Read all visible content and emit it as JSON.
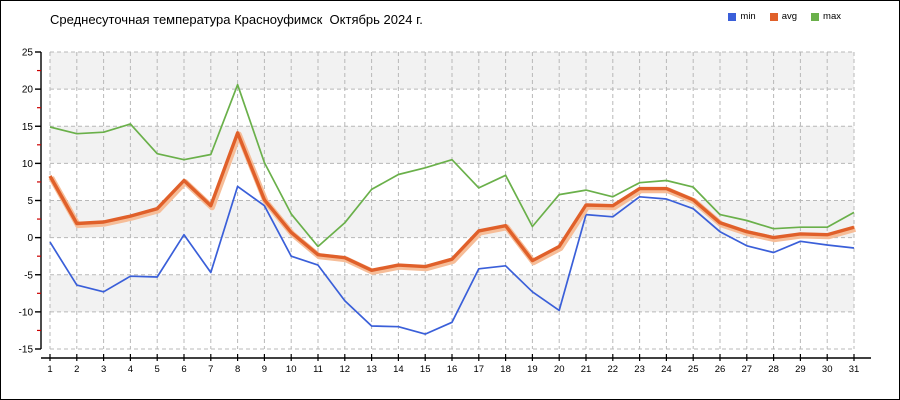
{
  "title": "Среднесуточная температура Красноуфимск  Октябрь 2024 г.",
  "legend": {
    "items": [
      {
        "label": "min",
        "color": "#3a5fd9"
      },
      {
        "label": "avg",
        "color": "#e0602a"
      },
      {
        "label": "max",
        "color": "#6ab04a"
      }
    ]
  },
  "chart_data": {
    "type": "line",
    "title": "Среднесуточная температура Красноуфимск  Октябрь 2024 г.",
    "xlabel": "",
    "ylabel": "",
    "x": [
      1,
      2,
      3,
      4,
      5,
      6,
      7,
      8,
      9,
      10,
      11,
      12,
      13,
      14,
      15,
      16,
      17,
      18,
      19,
      20,
      21,
      22,
      23,
      24,
      25,
      26,
      27,
      28,
      29,
      30,
      31
    ],
    "x_tick_labels": [
      "1",
      "2",
      "3",
      "4",
      "5",
      "6",
      "7",
      "8",
      "9",
      "10",
      "11",
      "12",
      "13",
      "14",
      "15",
      "16",
      "17",
      "18",
      "19",
      "20",
      "21",
      "22",
      "23",
      "24",
      "25",
      "26",
      "27",
      "28",
      "29",
      "30",
      "31"
    ],
    "ylim": [
      -15,
      25
    ],
    "y_ticks": [
      25,
      20,
      15,
      10,
      5,
      0,
      -5,
      -10,
      -15
    ],
    "y_minor_step": 2.5,
    "grid": "dashed",
    "background_bands": "alternating-5",
    "legend_position": "top-right",
    "series": [
      {
        "name": "min",
        "color": "#3a5fd9",
        "width": 1.7,
        "values": [
          -0.6,
          -6.4,
          -7.3,
          -5.2,
          -5.3,
          0.4,
          -4.7,
          6.9,
          4.3,
          -2.5,
          -3.7,
          -8.5,
          -11.9,
          -12.0,
          -13.0,
          -11.4,
          -4.2,
          -3.8,
          -7.3,
          -9.8,
          3.1,
          2.8,
          5.5,
          5.2,
          3.9,
          0.8,
          -1.1,
          -2.0,
          -0.5,
          -1.0,
          -1.4
        ]
      },
      {
        "name": "avg",
        "color": "#e0602a",
        "halo_color": "#f6bd98",
        "width": 3.4,
        "values": [
          8.3,
          1.9,
          2.1,
          2.9,
          3.9,
          7.7,
          4.3,
          14.1,
          5.1,
          0.7,
          -2.3,
          -2.7,
          -4.4,
          -3.7,
          -3.9,
          -2.9,
          0.9,
          1.6,
          -3.1,
          -1.2,
          4.4,
          4.3,
          6.6,
          6.6,
          5.1,
          2.0,
          0.8,
          0.0,
          0.5,
          0.4,
          1.4
        ]
      },
      {
        "name": "max",
        "color": "#6ab04a",
        "width": 1.7,
        "values": [
          14.9,
          14.0,
          14.2,
          15.3,
          11.3,
          10.5,
          11.2,
          20.6,
          10.1,
          3.2,
          -1.2,
          2.0,
          6.5,
          8.5,
          9.4,
          10.5,
          6.7,
          8.4,
          1.5,
          5.8,
          6.4,
          5.5,
          7.4,
          7.7,
          6.8,
          3.1,
          2.3,
          1.2,
          1.4,
          1.4,
          3.4
        ]
      }
    ],
    "colors": {
      "band_gray": "#f2f2f2",
      "gridline": "#b8b8b8",
      "axis": "#000000",
      "minor_tick": "#cc0000"
    }
  }
}
